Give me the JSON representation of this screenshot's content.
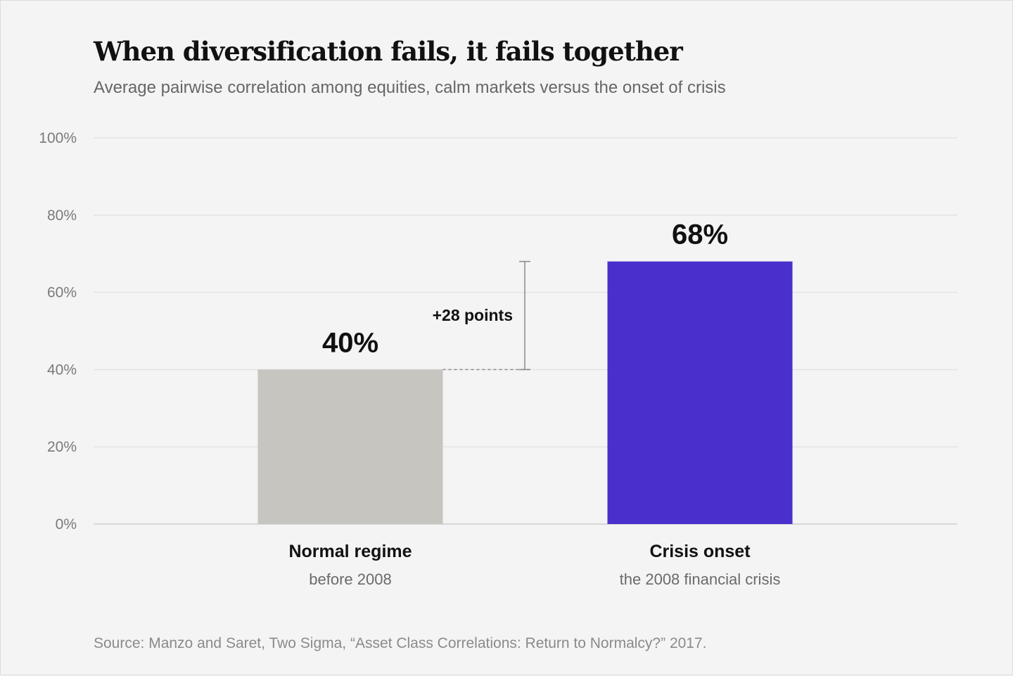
{
  "title": "When diversification fails, it fails together",
  "subtitle": "Average pairwise correlation among equities, calm markets versus the onset of crisis",
  "source": "Source: Manzo and Saret, Two Sigma, “Asset Class Correlations: Return to Normalcy?” 2017.",
  "chart_data": {
    "type": "bar",
    "ylim": [
      0,
      100
    ],
    "y_unit": "%",
    "y_ticks": [
      0,
      20,
      40,
      60,
      80,
      100
    ],
    "y_tick_labels": [
      "0%",
      "20%",
      "40%",
      "60%",
      "80%",
      "100%"
    ],
    "grid": true,
    "categories": [
      "Normal regime",
      "Crisis onset"
    ],
    "category_subtitles": [
      "before 2008",
      "the 2008 financial crisis"
    ],
    "values": [
      40,
      68
    ],
    "value_labels": [
      "40%",
      "68%"
    ],
    "colors": [
      "#c6c5c0",
      "#4b2fcc"
    ],
    "annotation": {
      "text": "+28 points",
      "from": 40,
      "to": 68
    }
  }
}
